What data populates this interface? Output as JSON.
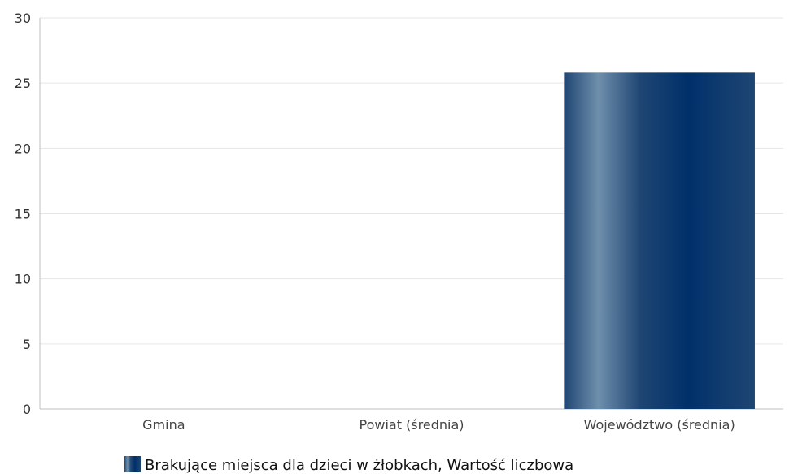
{
  "chart_data": {
    "type": "bar",
    "categories": [
      "Gmina",
      "Powiat (średnia)",
      "Województwo (średnia)"
    ],
    "series": [
      {
        "name": "Brakujące miejsca dla dzieci w żłobkach, Wartość liczbowa",
        "values": [
          0,
          0,
          25.8
        ],
        "color": "#00306a"
      }
    ],
    "ylim": [
      0,
      30
    ],
    "yticks": [
      0,
      5,
      10,
      15,
      20,
      25,
      30
    ],
    "grid": true,
    "legend": "bottom-center"
  }
}
